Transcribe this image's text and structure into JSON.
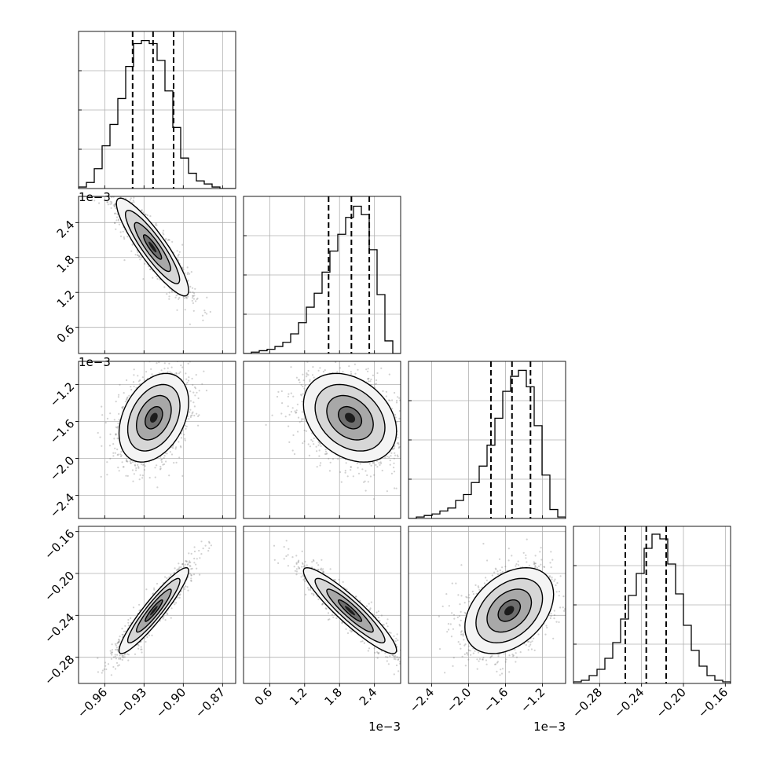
{
  "chart_data": {
    "type": "corner",
    "grid": true,
    "colors": {
      "ink": "#000000",
      "grid": "#b0b0b0",
      "scatter": "#7a7a7a"
    },
    "axis_ranges": [
      {
        "min": -0.98,
        "max": -0.86,
        "offset_label": "",
        "ticks": [
          -0.96,
          -0.93,
          -0.9,
          -0.87
        ],
        "tick_labels": [
          "−0.96",
          "−0.93",
          "−0.90",
          "−0.87"
        ]
      },
      {
        "min": 0.15,
        "max": 2.85,
        "offset_label": "1e−3",
        "ticks": [
          0.6,
          1.2,
          1.8,
          2.4
        ],
        "tick_labels": [
          "0.6",
          "1.2",
          "1.8",
          "2.4"
        ]
      },
      {
        "min": -2.65,
        "max": -0.95,
        "offset_label": "1e−3",
        "ticks": [
          -2.4,
          -2.0,
          -1.6,
          -1.2
        ],
        "tick_labels": [
          "−2.4",
          "−2.0",
          "−1.6",
          "−1.2"
        ]
      },
      {
        "min": -0.305,
        "max": -0.155,
        "offset_label": "",
        "ticks": [
          -0.28,
          -0.24,
          -0.2,
          -0.16
        ],
        "tick_labels": [
          "−0.28",
          "−0.24",
          "−0.20",
          "−0.16"
        ]
      }
    ],
    "histograms": [
      {
        "param": 0,
        "bin_edges": [
          -0.98,
          -0.974,
          -0.968,
          -0.962,
          -0.956,
          -0.95,
          -0.944,
          -0.938,
          -0.932,
          -0.926,
          -0.92,
          -0.914,
          -0.908,
          -0.902,
          -0.896,
          -0.89,
          -0.884,
          -0.878,
          -0.872,
          -0.866,
          -0.86
        ],
        "counts": [
          1,
          4,
          13,
          28,
          42,
          59,
          80,
          95,
          97,
          95,
          84,
          64,
          40,
          20,
          10,
          5,
          3,
          1,
          0,
          0
        ],
        "ymax": 103,
        "quantiles": [
          -0.9387,
          -0.9231,
          -0.9074
        ]
      },
      {
        "param": 1,
        "bin_edges": [
          0.15,
          0.285,
          0.42,
          0.555,
          0.69,
          0.825,
          0.96,
          1.095,
          1.23,
          1.365,
          1.5,
          1.635,
          1.77,
          1.905,
          2.04,
          2.175,
          2.31,
          2.445,
          2.58,
          2.715,
          2.85
        ],
        "counts": [
          0,
          1,
          2,
          3,
          5,
          8,
          14,
          22,
          33,
          43,
          58,
          73,
          85,
          97,
          105,
          99,
          74,
          42,
          9,
          0
        ],
        "ymax": 112,
        "quantiles": [
          1.612,
          2.004,
          2.311
        ]
      },
      {
        "param": 2,
        "bin_edges": [
          -2.65,
          -2.565,
          -2.48,
          -2.395,
          -2.31,
          -2.225,
          -2.14,
          -2.055,
          -1.97,
          -1.885,
          -1.8,
          -1.715,
          -1.63,
          -1.545,
          -1.46,
          -1.375,
          -1.29,
          -1.205,
          -1.12,
          -1.035,
          -0.95
        ],
        "counts": [
          0,
          1,
          2,
          3,
          5,
          7,
          12,
          16,
          24,
          35,
          49,
          67,
          85,
          95,
          99,
          88,
          62,
          29,
          6,
          1
        ],
        "ymax": 105,
        "quantiles": [
          -1.758,
          -1.53,
          -1.33
        ]
      },
      {
        "param": 3,
        "bin_edges": [
          -0.305,
          -0.2975,
          -0.29,
          -0.2825,
          -0.275,
          -0.2675,
          -0.26,
          -0.2525,
          -0.245,
          -0.2375,
          -0.23,
          -0.2225,
          -0.215,
          -0.2075,
          -0.2,
          -0.1925,
          -0.185,
          -0.1775,
          -0.17,
          -0.1625,
          -0.155
        ],
        "counts": [
          1,
          2,
          5,
          9,
          16,
          26,
          41,
          56,
          70,
          86,
          95,
          92,
          76,
          57,
          37,
          21,
          11,
          5,
          2,
          1
        ],
        "ymax": 100,
        "quantiles": [
          -0.2555,
          -0.2355,
          -0.2165
        ]
      }
    ],
    "pairs": [
      {
        "x_param": 0,
        "y_param": 1,
        "mean": [
          -0.9235,
          1.98
        ],
        "sd": [
          0.0138,
          0.42
        ],
        "corr": -0.89
      },
      {
        "x_param": 0,
        "y_param": 2,
        "mean": [
          -0.9225,
          -1.56
        ],
        "sd": [
          0.0133,
          0.24
        ],
        "corr": 0.35
      },
      {
        "x_param": 1,
        "y_param": 2,
        "mean": [
          1.98,
          -1.56
        ],
        "sd": [
          0.4,
          0.24
        ],
        "corr": -0.3
      },
      {
        "x_param": 0,
        "y_param": 3,
        "mean": [
          -0.9225,
          -0.2355
        ],
        "sd": [
          0.0133,
          0.0205
        ],
        "corr": 0.93
      },
      {
        "x_param": 1,
        "y_param": 3,
        "mean": [
          1.98,
          -0.2355
        ],
        "sd": [
          0.4,
          0.0205
        ],
        "corr": -0.92
      },
      {
        "x_param": 2,
        "y_param": 3,
        "mean": [
          -1.56,
          -0.2355
        ],
        "sd": [
          0.24,
          0.0205
        ],
        "corr": 0.38
      }
    ],
    "contour_sigmas": [
      0.5,
      1.0,
      1.5,
      2.0
    ]
  }
}
